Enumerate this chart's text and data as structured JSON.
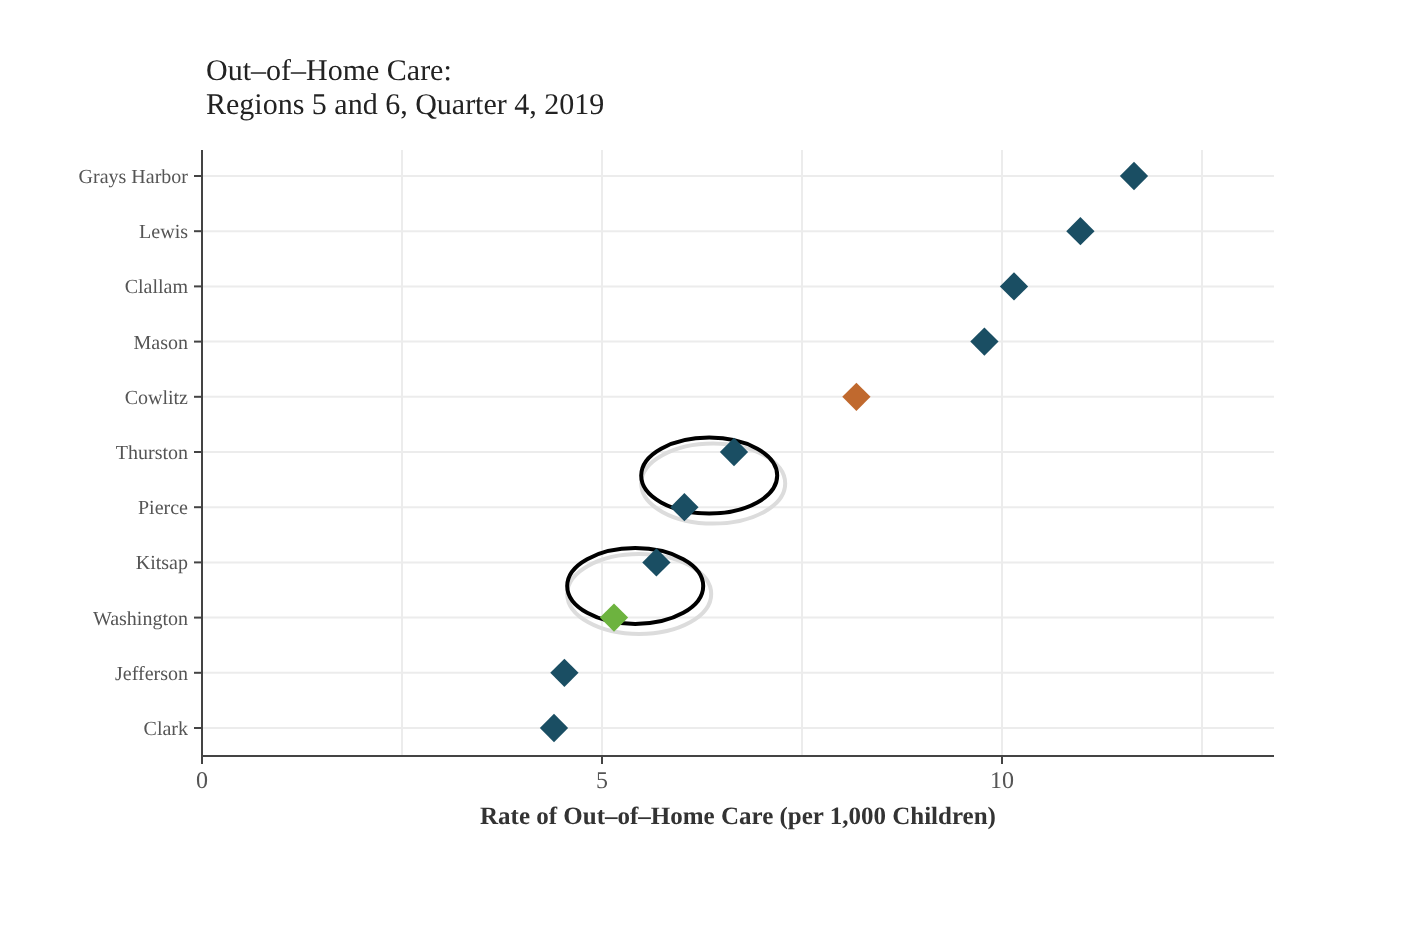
{
  "chart_data": {
    "type": "scatter",
    "title": "Out–of–Home Care:\nRegions 5 and 6, Quarter 4, 2019",
    "xlabel": "Rate of Out–of–Home Care (per 1,000 Children)",
    "orientation": "horizontal",
    "categories": [
      "Grays Harbor",
      "Lewis",
      "Clallam",
      "Mason",
      "Cowlitz",
      "Thurston",
      "Pierce",
      "Kitsap",
      "Washington",
      "Jefferson",
      "Clark"
    ],
    "values": [
      11.65,
      10.98,
      10.15,
      9.78,
      8.18,
      6.65,
      6.03,
      5.68,
      5.15,
      4.53,
      4.4
    ],
    "colors": [
      "#1a4e63",
      "#1a4e63",
      "#1a4e63",
      "#1a4e63",
      "#c0692e",
      "#1a4e63",
      "#1a4e63",
      "#1a4e63",
      "#6db33f",
      "#1a4e63",
      "#1a4e63"
    ],
    "xlim": [
      0,
      13.4
    ],
    "xticks": [
      0,
      {
        "value": 2.5,
        "label": null
      },
      5,
      {
        "value": 7.5,
        "label": null
      },
      10,
      {
        "value": 12.5,
        "label": null
      }
    ],
    "grid": true,
    "marker": "diamond"
  }
}
